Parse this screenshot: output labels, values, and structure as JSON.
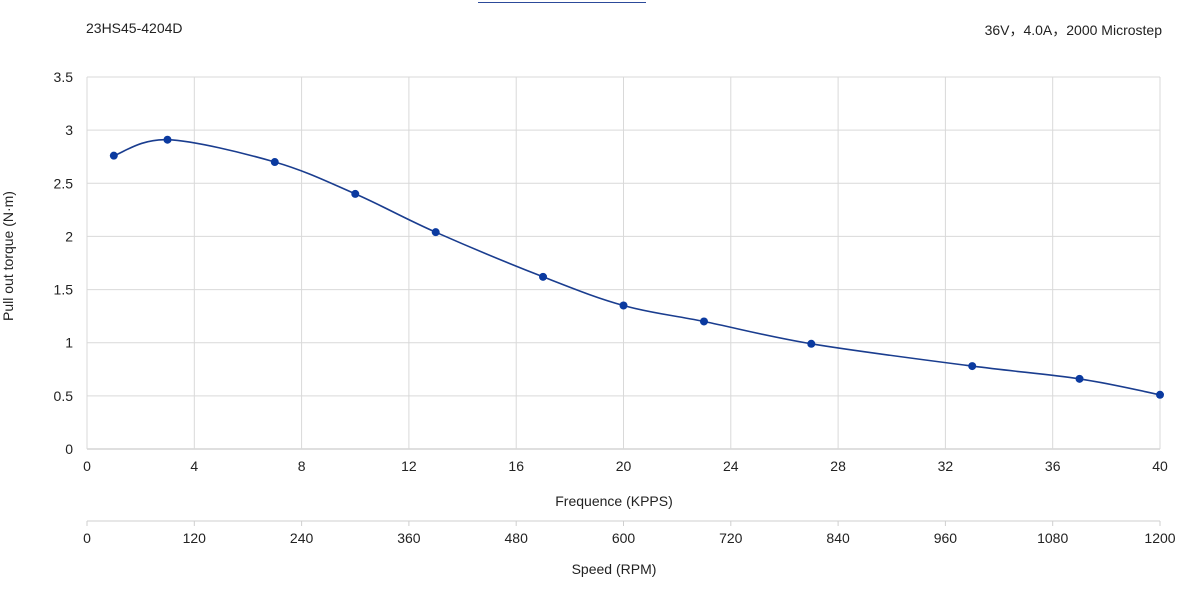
{
  "header": {
    "left": "23HS45-4204D",
    "right": "36V，4.0A，2000 Microstep"
  },
  "chart_data": {
    "type": "line",
    "ylabel": "Pull out torque (N·m)",
    "xlabel": "Frequence (KPPS)",
    "x2label": "Speed (RPM)",
    "xlim": [
      0,
      40
    ],
    "ylim": [
      0,
      3.5
    ],
    "x_ticks": [
      "0",
      "4",
      "8",
      "12",
      "16",
      "20",
      "24",
      "28",
      "32",
      "36",
      "40"
    ],
    "x2_ticks": [
      "0",
      "120",
      "240",
      "360",
      "480",
      "600",
      "720",
      "840",
      "960",
      "1080",
      "1200"
    ],
    "y_ticks": [
      "0",
      "0.5",
      "1",
      "1.5",
      "2",
      "2.5",
      "3",
      "3.5"
    ],
    "grid": true,
    "line_color": "#1a3d8f",
    "marker_color": "#0b3aa0",
    "grid_color": "#d9d9d9",
    "series": [
      {
        "x": [
          1,
          3,
          7,
          10,
          13,
          17,
          20,
          23,
          27,
          33,
          37,
          40
        ],
        "y": [
          2.76,
          2.91,
          2.7,
          2.4,
          2.04,
          1.62,
          1.35,
          1.2,
          0.99,
          0.78,
          0.66,
          0.51
        ]
      }
    ]
  }
}
